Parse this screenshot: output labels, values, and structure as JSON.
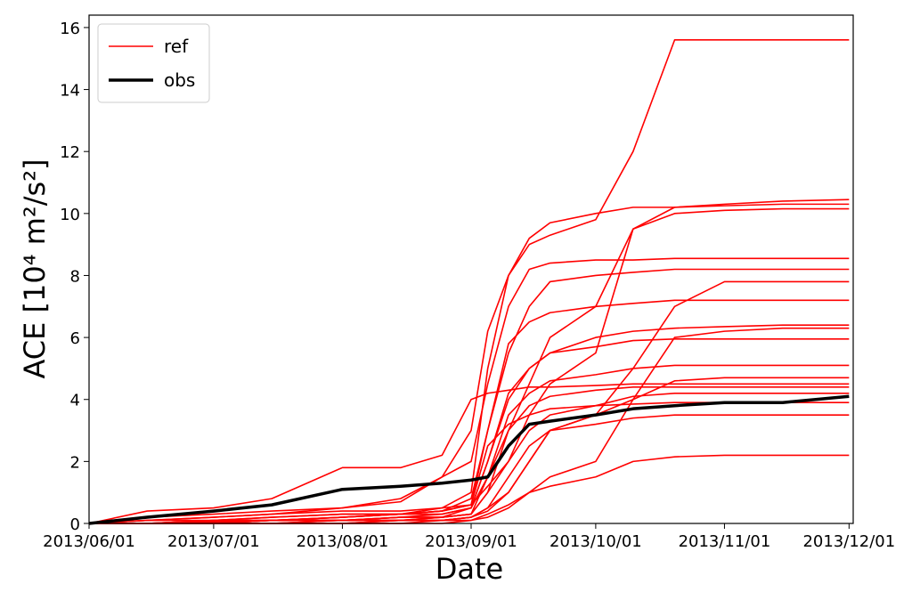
{
  "chart_data": {
    "type": "line",
    "x_label": "Date",
    "y_label": "ACE [10⁴ m²/s²]",
    "x": [
      "2013/06/01",
      "2013/06/15",
      "2013/07/01",
      "2013/07/15",
      "2013/08/01",
      "2013/08/15",
      "2013/08/25",
      "2013/09/01",
      "2013/09/05",
      "2013/09/10",
      "2013/09/15",
      "2013/09/20",
      "2013/10/01",
      "2013/10/10",
      "2013/10/20",
      "2013/11/01",
      "2013/11/15",
      "2013/12/01"
    ],
    "xlim": [
      "2013/06/01",
      "2013/12/02"
    ],
    "xticks": [
      "2013/06/01",
      "2013/07/01",
      "2013/08/01",
      "2013/09/01",
      "2013/10/01",
      "2013/11/01",
      "2013/12/01"
    ],
    "ylim": [
      0,
      16.4
    ],
    "yticks": [
      0,
      2,
      4,
      6,
      8,
      10,
      12,
      14,
      16
    ],
    "legend": "upper left",
    "series": [
      {
        "name": "ref",
        "color": "#ff0000",
        "values": [
          0,
          0.1,
          0.2,
          0.3,
          0.5,
          0.8,
          1.5,
          3,
          6.2,
          8,
          9,
          9.3,
          9.8,
          12,
          15.6,
          15.6,
          15.6,
          15.6
        ]
      },
      {
        "name": "ref",
        "color": "#ff0000",
        "values": [
          0,
          0,
          0.05,
          0.1,
          0.1,
          0.2,
          0.2,
          0.5,
          1.5,
          3,
          4.5,
          6,
          7,
          9.5,
          10.2,
          10.3,
          10.4,
          10.45
        ]
      },
      {
        "name": "ref",
        "color": "#ff0000",
        "values": [
          0,
          0,
          0.1,
          0.1,
          0.2,
          0.3,
          0.5,
          1,
          5,
          8,
          9.2,
          9.7,
          10,
          10.2,
          10.2,
          10.25,
          10.3,
          10.3
        ]
      },
      {
        "name": "ref",
        "color": "#ff0000",
        "values": [
          0,
          0,
          0,
          0,
          0.1,
          0.1,
          0.2,
          0.3,
          1,
          2,
          3.5,
          4.5,
          5.5,
          9.5,
          10,
          10.1,
          10.15,
          10.15
        ]
      },
      {
        "name": "ref",
        "color": "#ff0000",
        "values": [
          0,
          0.2,
          0.3,
          0.4,
          0.5,
          0.7,
          1.5,
          2,
          4.5,
          7,
          8.2,
          8.4,
          8.5,
          8.5,
          8.55,
          8.55,
          8.55,
          8.55
        ]
      },
      {
        "name": "ref",
        "color": "#ff0000",
        "values": [
          0,
          0,
          0.1,
          0.2,
          0.3,
          0.3,
          0.4,
          0.6,
          3,
          5.5,
          7,
          7.8,
          8,
          8.1,
          8.2,
          8.2,
          8.2,
          8.2
        ]
      },
      {
        "name": "ref",
        "color": "#ff0000",
        "values": [
          0,
          0,
          0,
          0,
          0,
          0.1,
          0.1,
          0.2,
          0.5,
          1,
          2,
          3,
          3.5,
          5,
          7,
          7.8,
          7.8,
          7.8
        ]
      },
      {
        "name": "ref",
        "color": "#ff0000",
        "values": [
          0,
          0,
          0.05,
          0.1,
          0.2,
          0.3,
          0.4,
          0.8,
          3,
          5.8,
          6.5,
          6.8,
          7,
          7.1,
          7.2,
          7.2,
          7.2,
          7.2
        ]
      },
      {
        "name": "ref",
        "color": "#ff0000",
        "values": [
          0,
          0,
          0,
          0.1,
          0.1,
          0.2,
          0.3,
          0.5,
          2,
          4,
          5,
          5.5,
          6,
          6.2,
          6.3,
          6.35,
          6.4,
          6.4
        ]
      },
      {
        "name": "ref",
        "color": "#ff0000",
        "values": [
          0,
          0,
          0,
          0,
          0,
          0.1,
          0.1,
          0.2,
          0.4,
          1,
          2,
          3,
          3.5,
          4,
          6,
          6.2,
          6.3,
          6.3
        ]
      },
      {
        "name": "ref",
        "color": "#ff0000",
        "values": [
          0,
          0,
          0.1,
          0.1,
          0.2,
          0.3,
          0.3,
          0.5,
          2,
          4.2,
          5,
          5.5,
          5.7,
          5.9,
          5.95,
          5.95,
          5.95,
          5.95
        ]
      },
      {
        "name": "ref",
        "color": "#ff0000",
        "values": [
          0,
          0,
          0,
          0.1,
          0.1,
          0.2,
          0.2,
          0.3,
          1.5,
          3.5,
          4.2,
          4.6,
          4.8,
          5,
          5.1,
          5.1,
          5.1,
          5.1
        ]
      },
      {
        "name": "ref",
        "color": "#ff0000",
        "values": [
          0,
          0,
          0,
          0,
          0,
          0,
          0.1,
          0.1,
          0.3,
          0.6,
          1,
          1.5,
          2,
          4,
          4.6,
          4.7,
          4.7,
          4.7
        ]
      },
      {
        "name": "ref",
        "color": "#ff0000",
        "values": [
          0,
          0.4,
          0.5,
          0.8,
          1.8,
          1.8,
          2.2,
          4,
          4.2,
          4.3,
          4.4,
          4.4,
          4.45,
          4.5,
          4.5,
          4.5,
          4.5,
          4.5
        ]
      },
      {
        "name": "ref",
        "color": "#ff0000",
        "values": [
          0,
          0,
          0,
          0.1,
          0.1,
          0.1,
          0.2,
          0.3,
          1,
          3,
          3.8,
          4.1,
          4.3,
          4.4,
          4.4,
          4.4,
          4.4,
          4.4
        ]
      },
      {
        "name": "ref",
        "color": "#ff0000",
        "values": [
          0,
          0.1,
          0.1,
          0.2,
          0.3,
          0.3,
          0.4,
          0.6,
          1.2,
          2,
          3,
          3.5,
          3.8,
          4.1,
          4.2,
          4.2,
          4.2,
          4.2
        ]
      },
      {
        "name": "ref",
        "color": "#ff0000",
        "values": [
          0,
          0.1,
          0.2,
          0.3,
          0.4,
          0.4,
          0.5,
          0.6,
          2.5,
          3.2,
          3.5,
          3.7,
          3.8,
          3.85,
          3.9,
          3.9,
          3.9,
          3.9
        ]
      },
      {
        "name": "ref",
        "color": "#ff0000",
        "values": [
          0,
          0,
          0,
          0,
          0.1,
          0.1,
          0.1,
          0.2,
          0.5,
          1.5,
          2.5,
          3,
          3.2,
          3.4,
          3.5,
          3.5,
          3.5,
          3.5
        ]
      },
      {
        "name": "ref",
        "color": "#ff0000",
        "values": [
          0,
          0,
          0,
          0,
          0,
          0,
          0,
          0.1,
          0.2,
          0.5,
          1,
          1.2,
          1.5,
          2,
          2.15,
          2.2,
          2.2,
          2.2
        ]
      },
      {
        "name": "obs",
        "color": "#000000",
        "values": [
          0,
          0.2,
          0.4,
          0.6,
          1.1,
          1.2,
          1.3,
          1.4,
          1.5,
          2.5,
          3.2,
          3.3,
          3.5,
          3.7,
          3.8,
          3.9,
          3.9,
          4.1
        ]
      }
    ]
  }
}
